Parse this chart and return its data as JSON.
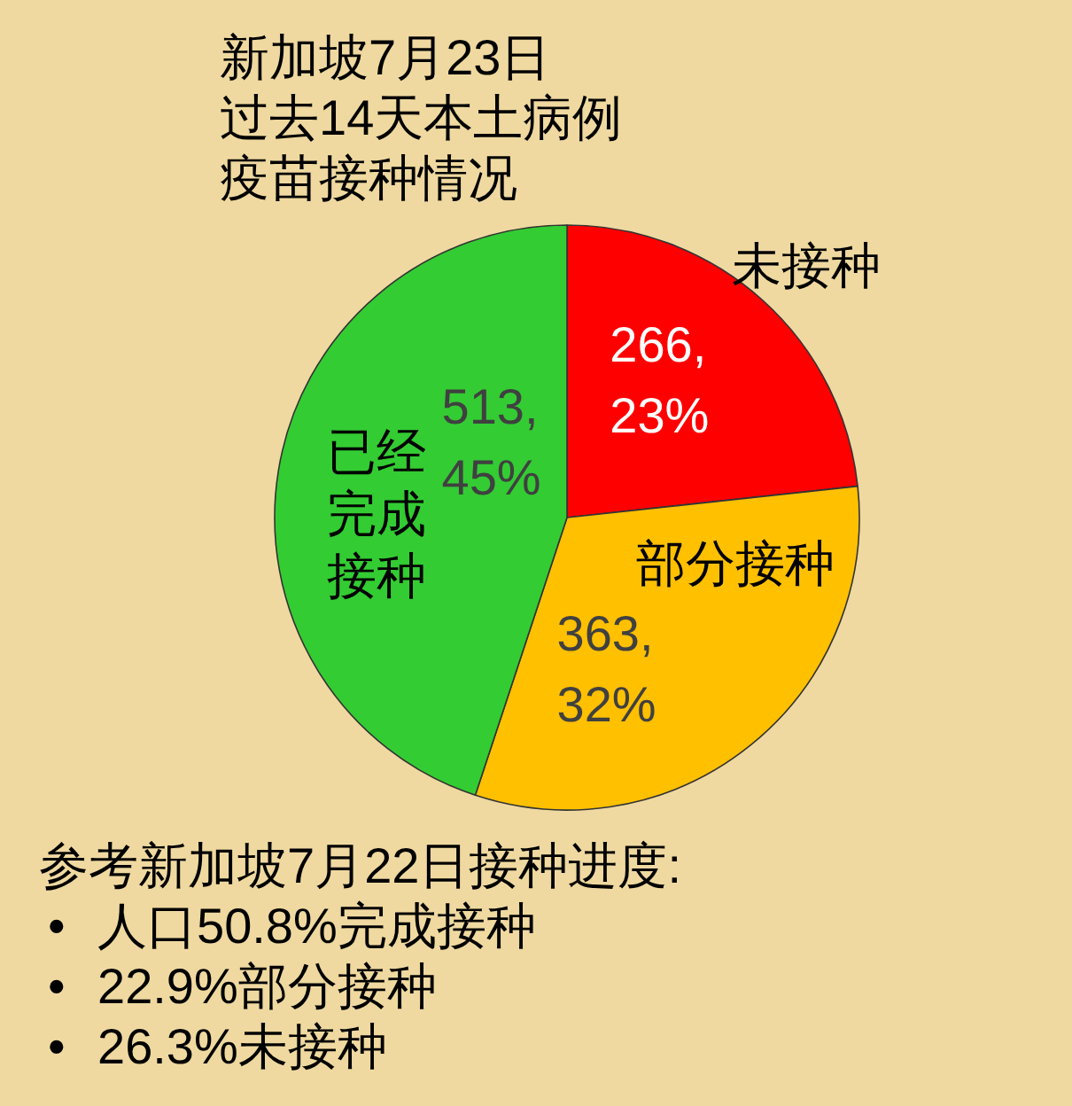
{
  "chart_data": {
    "type": "pie",
    "title": "新加坡7月23日",
    "subtitle": "过去14天本土病例疫苗接种情况",
    "categories": [
      "未接种",
      "部分接种",
      "已经完成接种"
    ],
    "values": [
      266,
      363,
      513
    ],
    "colors": [
      "#ff0000",
      "#ffc000",
      "#33cc33"
    ],
    "value_labels": [
      "266, 23%",
      "363, 32%",
      "513, 45%"
    ],
    "annotations": [
      "参考新加坡7月22日接种进度:",
      "• 人口50.8%完成接种",
      "• 22.9%部分接种",
      "• 26.3%未接种"
    ]
  }
}
